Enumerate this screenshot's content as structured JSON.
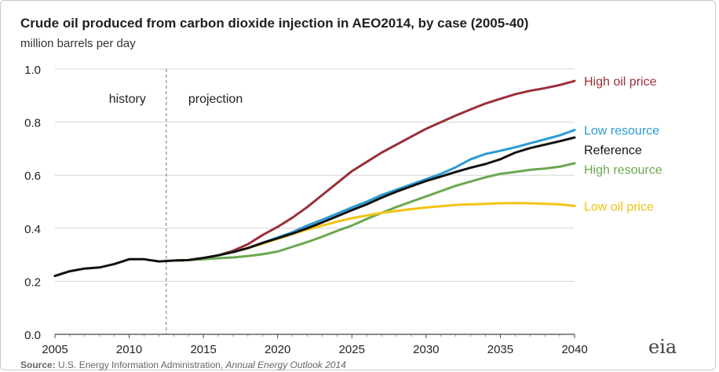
{
  "chart_data": {
    "type": "line",
    "title": "Crude oil produced from carbon dioxide injection in AEO2014,  by case (2005-40)",
    "subtitle": "million barrels  per day",
    "x_ticks": [
      "2005",
      "2010",
      "2015",
      "2020",
      "2025",
      "2030",
      "2035",
      "2040"
    ],
    "y_ticks": [
      "0.0",
      "0.2",
      "0.4",
      "0.6",
      "0.8",
      "1.0"
    ],
    "xlim": [
      2005,
      2040
    ],
    "ylim": [
      0,
      1.0
    ],
    "grid": "horizontal",
    "divider_year": 2012.5,
    "history_label": "history",
    "projection_label": "projection",
    "history": {
      "x": [
        2005,
        2006,
        2007,
        2008,
        2009,
        2010,
        2011,
        2012,
        2013
      ],
      "values": [
        0.22,
        0.238,
        0.248,
        0.252,
        0.265,
        0.283,
        0.283,
        0.275,
        0.278
      ],
      "color": "#111111"
    },
    "series": [
      {
        "name": "High oil price",
        "color": "#9b2f3a",
        "x": [
          2013,
          2014,
          2015,
          2016,
          2017,
          2018,
          2019,
          2020,
          2021,
          2022,
          2023,
          2024,
          2025,
          2026,
          2027,
          2028,
          2029,
          2030,
          2031,
          2032,
          2033,
          2034,
          2035,
          2036,
          2037,
          2038,
          2039,
          2040
        ],
        "values": [
          0.278,
          0.28,
          0.288,
          0.298,
          0.315,
          0.34,
          0.375,
          0.405,
          0.44,
          0.48,
          0.525,
          0.57,
          0.615,
          0.65,
          0.685,
          0.715,
          0.745,
          0.775,
          0.8,
          0.825,
          0.848,
          0.87,
          0.888,
          0.905,
          0.918,
          0.928,
          0.94,
          0.955
        ]
      },
      {
        "name": "Low resource",
        "color": "#2a9bd4",
        "x": [
          2013,
          2014,
          2015,
          2016,
          2017,
          2018,
          2019,
          2020,
          2021,
          2022,
          2023,
          2024,
          2025,
          2026,
          2027,
          2028,
          2029,
          2030,
          2031,
          2032,
          2033,
          2034,
          2035,
          2036,
          2037,
          2038,
          2039,
          2040
        ],
        "values": [
          0.278,
          0.28,
          0.288,
          0.298,
          0.31,
          0.325,
          0.345,
          0.365,
          0.385,
          0.41,
          0.432,
          0.455,
          0.478,
          0.5,
          0.525,
          0.545,
          0.565,
          0.585,
          0.605,
          0.63,
          0.66,
          0.68,
          0.692,
          0.705,
          0.72,
          0.735,
          0.75,
          0.77
        ]
      },
      {
        "name": "Reference",
        "color": "#111111",
        "x": [
          2013,
          2014,
          2015,
          2016,
          2017,
          2018,
          2019,
          2020,
          2021,
          2022,
          2023,
          2024,
          2025,
          2026,
          2027,
          2028,
          2029,
          2030,
          2031,
          2032,
          2033,
          2034,
          2035,
          2036,
          2037,
          2038,
          2039,
          2040
        ],
        "values": [
          0.278,
          0.28,
          0.288,
          0.298,
          0.31,
          0.325,
          0.345,
          0.362,
          0.38,
          0.4,
          0.422,
          0.445,
          0.468,
          0.49,
          0.515,
          0.538,
          0.558,
          0.578,
          0.595,
          0.612,
          0.628,
          0.642,
          0.66,
          0.685,
          0.702,
          0.715,
          0.728,
          0.742
        ]
      },
      {
        "name": "High resource",
        "color": "#6aa84f",
        "x": [
          2013,
          2014,
          2015,
          2016,
          2017,
          2018,
          2019,
          2020,
          2021,
          2022,
          2023,
          2024,
          2025,
          2026,
          2027,
          2028,
          2029,
          2030,
          2031,
          2032,
          2033,
          2034,
          2035,
          2036,
          2037,
          2038,
          2039,
          2040
        ],
        "values": [
          0.278,
          0.28,
          0.283,
          0.287,
          0.29,
          0.295,
          0.302,
          0.312,
          0.33,
          0.348,
          0.368,
          0.39,
          0.41,
          0.435,
          0.458,
          0.48,
          0.5,
          0.52,
          0.54,
          0.56,
          0.576,
          0.592,
          0.605,
          0.612,
          0.62,
          0.625,
          0.632,
          0.645
        ]
      },
      {
        "name": "Low oil price",
        "color": "#f2c314",
        "x": [
          2013,
          2014,
          2015,
          2016,
          2017,
          2018,
          2019,
          2020,
          2021,
          2022,
          2023,
          2024,
          2025,
          2026,
          2027,
          2028,
          2029,
          2030,
          2031,
          2032,
          2033,
          2034,
          2035,
          2036,
          2037,
          2038,
          2039,
          2040
        ],
        "values": [
          0.278,
          0.28,
          0.288,
          0.298,
          0.31,
          0.325,
          0.342,
          0.36,
          0.378,
          0.395,
          0.41,
          0.425,
          0.438,
          0.448,
          0.458,
          0.465,
          0.472,
          0.478,
          0.483,
          0.488,
          0.49,
          0.492,
          0.494,
          0.495,
          0.494,
          0.492,
          0.49,
          0.484
        ]
      }
    ]
  },
  "source": {
    "label": "Source:",
    "text": "U.S. Energy Information Administration,",
    "publication": "Annual Energy Outlook 2014"
  },
  "logo_text": "eia"
}
